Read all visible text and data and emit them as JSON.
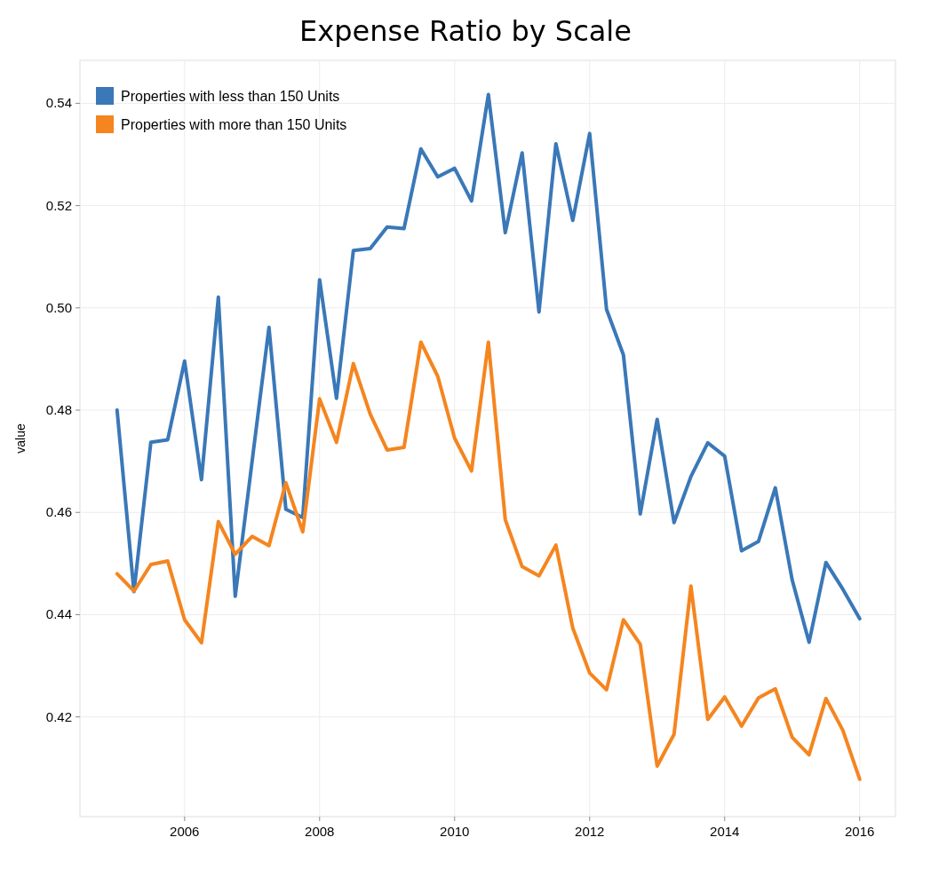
{
  "chart_data": {
    "type": "line",
    "title": "Expense Ratio by Scale",
    "ylabel": "value",
    "x": [
      2005,
      2005.25,
      2005.5,
      2005.75,
      2006,
      2006.25,
      2006.5,
      2006.75,
      2007,
      2007.25,
      2007.5,
      2007.75,
      2008,
      2008.25,
      2008.5,
      2008.75,
      2009,
      2009.25,
      2009.5,
      2009.75,
      2010,
      2010.25,
      2010.5,
      2010.75,
      2011,
      2011.25,
      2011.5,
      2011.75,
      2012,
      2012.25,
      2012.5,
      2012.75,
      2013,
      2013.25,
      2013.5,
      2013.75,
      2014,
      2014.25,
      2014.5,
      2014.75,
      2015,
      2015.25,
      2015.5,
      2015.75,
      2016
    ],
    "series": [
      {
        "name": "Properties with less than 150 Units",
        "color": "#3a78b8",
        "values": [
          0.48,
          0.4445,
          0.4737,
          0.4742,
          0.4896,
          0.4664,
          0.5021,
          0.4436,
          0.47,
          0.4962,
          0.4606,
          0.459,
          0.5055,
          0.4823,
          0.5112,
          0.5116,
          0.5158,
          0.5155,
          0.5311,
          0.5256,
          0.5273,
          0.5209,
          0.5417,
          0.5147,
          0.5303,
          0.4992,
          0.5321,
          0.5171,
          0.5341,
          0.4997,
          0.4908,
          0.4597,
          0.4782,
          0.458,
          0.467,
          0.4736,
          0.471,
          0.4525,
          0.4543,
          0.4648,
          0.4468,
          0.4346,
          0.4502,
          0.445,
          0.4392
        ]
      },
      {
        "name": "Properties with more than 150 Units",
        "color": "#f5851f",
        "values": [
          0.448,
          0.4446,
          0.4498,
          0.4505,
          0.439,
          0.4345,
          0.4582,
          0.4518,
          0.4553,
          0.4535,
          0.4658,
          0.4562,
          0.4822,
          0.4737,
          0.4891,
          0.4792,
          0.4722,
          0.4727,
          0.4933,
          0.4866,
          0.4745,
          0.4681,
          0.4933,
          0.4586,
          0.4494,
          0.4476,
          0.4536,
          0.4374,
          0.4286,
          0.4253,
          0.439,
          0.4342,
          0.4104,
          0.4166,
          0.4456,
          0.4195,
          0.4239,
          0.4182,
          0.4237,
          0.4255,
          0.416,
          0.4126,
          0.4236,
          0.4174,
          0.4078
        ]
      }
    ],
    "xlim": [
      2004.45,
      2016.53
    ],
    "xticks": [
      2006,
      2008,
      2010,
      2012,
      2014,
      2016
    ],
    "ylim": [
      0.4005,
      0.5484
    ],
    "yticks": [
      {
        "value": 0.42,
        "label": "0.42"
      },
      {
        "value": 0.44,
        "label": "0.44"
      },
      {
        "value": 0.46,
        "label": "0.46"
      },
      {
        "value": 0.48,
        "label": "0.48"
      },
      {
        "value": 0.5,
        "label": "0.50"
      },
      {
        "value": 0.52,
        "label": "0.52"
      },
      {
        "value": 0.54,
        "label": "0.54"
      }
    ],
    "grid": true,
    "legend": "top left",
    "marker": "none",
    "line_style": "solid"
  }
}
